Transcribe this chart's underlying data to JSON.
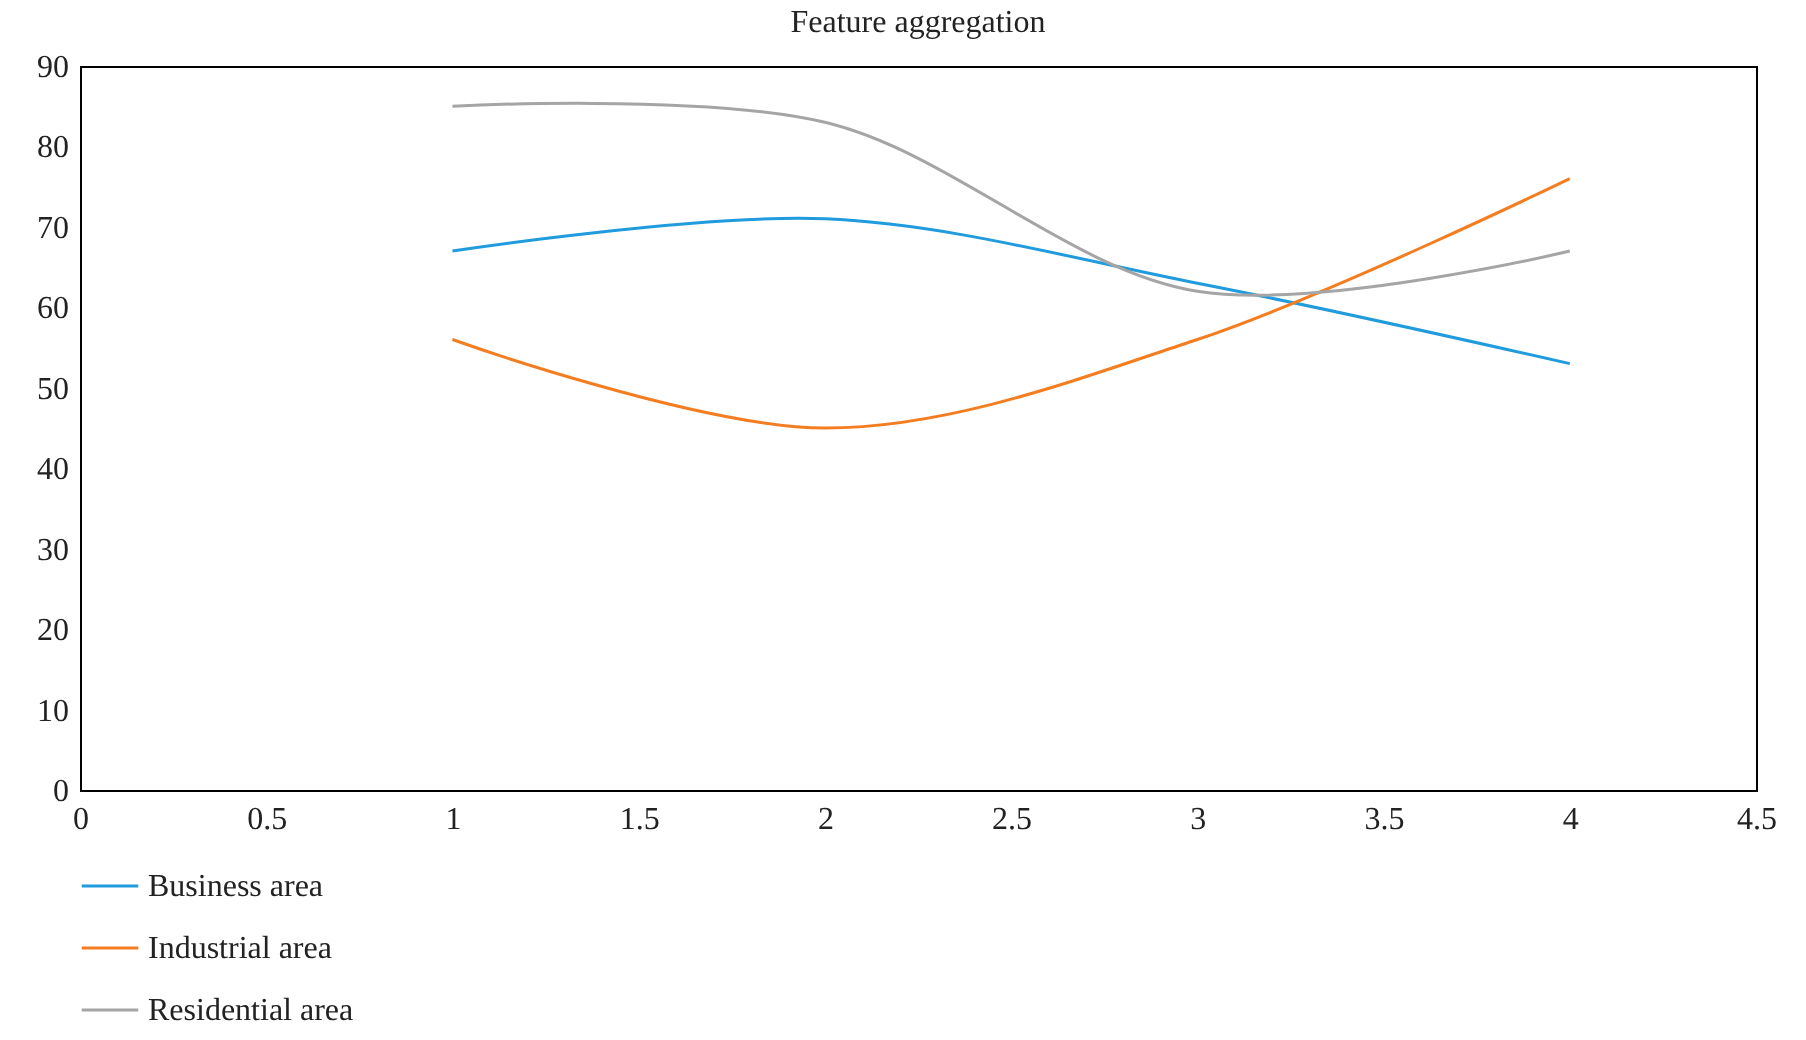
{
  "chart_data": {
    "type": "line",
    "title": "Feature aggregation",
    "x": [
      1,
      2,
      3,
      4
    ],
    "series": [
      {
        "name": "Business area",
        "color": "#1f9bde",
        "values": [
          67,
          71,
          63,
          53
        ]
      },
      {
        "name": "Industrial area",
        "color": "#f47d20",
        "values": [
          56,
          45,
          56,
          76
        ]
      },
      {
        "name": "Residential area",
        "color": "#a5a5a5",
        "values": [
          85,
          83,
          62,
          67
        ]
      }
    ],
    "xlim": [
      0,
      4.5
    ],
    "xticks": [
      0,
      0.5,
      1,
      1.5,
      2,
      2.5,
      3,
      3.5,
      4,
      4.5
    ],
    "ylim": [
      0,
      90
    ],
    "yticks": [
      0,
      10,
      20,
      30,
      40,
      50,
      60,
      70,
      80,
      90
    ],
    "grid": false,
    "legend": "bottom left",
    "marker": "none",
    "line_style": "solid"
  }
}
